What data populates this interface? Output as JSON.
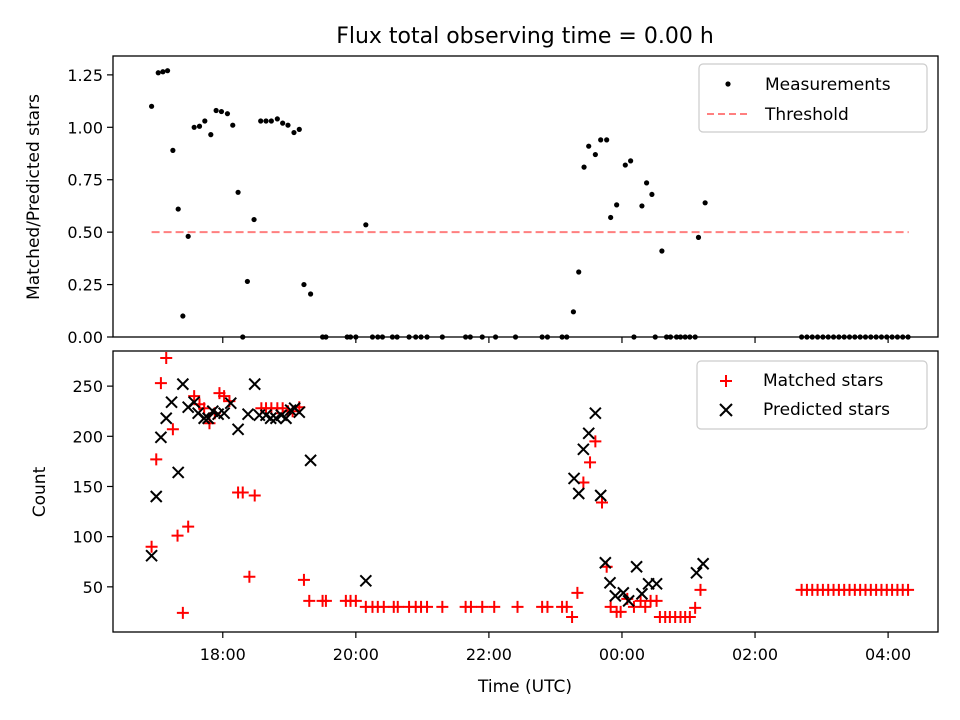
{
  "title": "Flux total observing time = 0.00 h",
  "chart_data": [
    {
      "type": "scatter",
      "panel": "top",
      "ylabel": "Matched/Predicted stars",
      "ylim": [
        0,
        1.34
      ],
      "yticks": [
        0.0,
        0.25,
        0.5,
        0.75,
        1.0,
        1.25
      ],
      "ytick_labels": [
        "0.00",
        "0.25",
        "0.50",
        "0.75",
        "1.00",
        "1.25"
      ],
      "threshold": {
        "name": "Threshold",
        "y": 0.5,
        "x_start": 16.93,
        "x_end": 28.31,
        "color": "#ff7f7f"
      },
      "legend": {
        "position": "top-right",
        "entries": [
          "Measurements",
          "Threshold"
        ]
      },
      "series": [
        {
          "name": "Measurements",
          "color": "#000000",
          "points": [
            [
              16.93,
              1.1
            ],
            [
              17.03,
              1.26
            ],
            [
              17.1,
              1.265
            ],
            [
              17.17,
              1.27
            ],
            [
              17.25,
              0.89
            ],
            [
              17.33,
              0.61
            ],
            [
              17.4,
              0.1
            ],
            [
              17.48,
              0.48
            ],
            [
              17.57,
              1.0
            ],
            [
              17.65,
              1.005
            ],
            [
              17.73,
              1.03
            ],
            [
              17.82,
              0.965
            ],
            [
              17.9,
              1.08
            ],
            [
              17.98,
              1.075
            ],
            [
              18.07,
              1.065
            ],
            [
              18.15,
              1.01
            ],
            [
              18.23,
              0.69
            ],
            [
              18.3,
              0.0
            ],
            [
              18.37,
              0.265
            ],
            [
              18.47,
              0.56
            ],
            [
              18.57,
              1.03
            ],
            [
              18.65,
              1.03
            ],
            [
              18.73,
              1.03
            ],
            [
              18.82,
              1.04
            ],
            [
              18.9,
              1.02
            ],
            [
              18.98,
              1.01
            ],
            [
              19.07,
              0.975
            ],
            [
              19.15,
              0.99
            ],
            [
              19.22,
              0.25
            ],
            [
              19.32,
              0.205
            ],
            [
              19.5,
              0.0
            ],
            [
              19.55,
              0.0
            ],
            [
              19.87,
              0.0
            ],
            [
              19.92,
              0.0
            ],
            [
              20.0,
              0.0
            ],
            [
              20.15,
              0.535
            ],
            [
              20.25,
              0.0
            ],
            [
              20.33,
              0.0
            ],
            [
              20.4,
              0.0
            ],
            [
              20.55,
              0.0
            ],
            [
              20.62,
              0.0
            ],
            [
              20.8,
              0.0
            ],
            [
              20.9,
              0.0
            ],
            [
              20.98,
              0.0
            ],
            [
              21.07,
              0.0
            ],
            [
              21.3,
              0.0
            ],
            [
              21.65,
              0.0
            ],
            [
              21.72,
              0.0
            ],
            [
              21.9,
              0.0
            ],
            [
              22.1,
              0.0
            ],
            [
              22.4,
              0.0
            ],
            [
              22.8,
              0.0
            ],
            [
              22.88,
              0.0
            ],
            [
              23.1,
              0.0
            ],
            [
              23.17,
              0.0
            ],
            [
              23.27,
              0.12
            ],
            [
              23.35,
              0.31
            ],
            [
              23.43,
              0.81
            ],
            [
              23.5,
              0.91
            ],
            [
              23.6,
              0.87
            ],
            [
              23.68,
              0.94
            ],
            [
              23.77,
              0.94
            ],
            [
              23.83,
              0.57
            ],
            [
              23.92,
              0.63
            ],
            [
              24.05,
              0.82
            ],
            [
              24.13,
              0.84
            ],
            [
              24.18,
              0.0
            ],
            [
              24.3,
              0.625
            ],
            [
              24.37,
              0.735
            ],
            [
              24.45,
              0.68
            ],
            [
              24.5,
              0.0
            ],
            [
              24.6,
              0.41
            ],
            [
              24.67,
              0.0
            ],
            [
              24.73,
              0.0
            ],
            [
              24.82,
              0.0
            ],
            [
              24.88,
              0.0
            ],
            [
              24.95,
              0.0
            ],
            [
              25.02,
              0.0
            ],
            [
              25.1,
              0.0
            ],
            [
              25.15,
              0.475
            ],
            [
              25.25,
              0.64
            ],
            [
              26.7,
              0.0
            ],
            [
              26.78,
              0.0
            ],
            [
              26.86,
              0.0
            ],
            [
              26.94,
              0.0
            ],
            [
              27.02,
              0.0
            ],
            [
              27.1,
              0.0
            ],
            [
              27.18,
              0.0
            ],
            [
              27.26,
              0.0
            ],
            [
              27.34,
              0.0
            ],
            [
              27.42,
              0.0
            ],
            [
              27.5,
              0.0
            ],
            [
              27.58,
              0.0
            ],
            [
              27.66,
              0.0
            ],
            [
              27.74,
              0.0
            ],
            [
              27.82,
              0.0
            ],
            [
              27.9,
              0.0
            ],
            [
              27.98,
              0.0
            ],
            [
              28.06,
              0.0
            ],
            [
              28.14,
              0.0
            ],
            [
              28.22,
              0.0
            ],
            [
              28.3,
              0.0
            ]
          ]
        }
      ]
    },
    {
      "type": "scatter",
      "panel": "bottom",
      "xlabel": "Time (UTC)",
      "ylabel": "Count",
      "ylim": [
        5,
        285
      ],
      "yticks": [
        50,
        100,
        150,
        200,
        250
      ],
      "ytick_labels": [
        "50",
        "100",
        "150",
        "200",
        "250"
      ],
      "xlim": [
        16.35,
        28.75
      ],
      "xticks": [
        18,
        20,
        22,
        24,
        26,
        28
      ],
      "xtick_labels": [
        "18:00",
        "20:00",
        "22:00",
        "00:00",
        "02:00",
        "04:00"
      ],
      "legend": {
        "position": "top-right",
        "entries": [
          "Matched stars",
          "Predicted stars"
        ]
      },
      "series": [
        {
          "name": "Matched stars",
          "marker": "plus",
          "color": "#ff0000",
          "points": [
            [
              16.93,
              90
            ],
            [
              17.0,
              177
            ],
            [
              17.07,
              253
            ],
            [
              17.15,
              278
            ],
            [
              17.25,
              207
            ],
            [
              17.32,
              101
            ],
            [
              17.4,
              24
            ],
            [
              17.48,
              110
            ],
            [
              17.57,
              240
            ],
            [
              17.65,
              232
            ],
            [
              17.72,
              228
            ],
            [
              17.8,
              213
            ],
            [
              17.88,
              223
            ],
            [
              17.95,
              243
            ],
            [
              18.02,
              240
            ],
            [
              18.1,
              235
            ],
            [
              18.23,
              144
            ],
            [
              18.3,
              144
            ],
            [
              18.4,
              60
            ],
            [
              18.48,
              141
            ],
            [
              18.58,
              228
            ],
            [
              18.65,
              228
            ],
            [
              18.73,
              228
            ],
            [
              18.82,
              228
            ],
            [
              18.9,
              228
            ],
            [
              18.98,
              225
            ],
            [
              19.05,
              225
            ],
            [
              19.15,
              229
            ],
            [
              19.22,
              57
            ],
            [
              19.3,
              36
            ],
            [
              19.5,
              36
            ],
            [
              19.55,
              36
            ],
            [
              19.85,
              36
            ],
            [
              19.92,
              36
            ],
            [
              20.0,
              36
            ],
            [
              20.15,
              30
            ],
            [
              20.25,
              30
            ],
            [
              20.33,
              30
            ],
            [
              20.42,
              30
            ],
            [
              20.57,
              30
            ],
            [
              20.63,
              30
            ],
            [
              20.8,
              30
            ],
            [
              20.9,
              30
            ],
            [
              20.98,
              30
            ],
            [
              21.07,
              30
            ],
            [
              21.3,
              30
            ],
            [
              21.65,
              30
            ],
            [
              21.73,
              30
            ],
            [
              21.9,
              30
            ],
            [
              22.08,
              30
            ],
            [
              22.43,
              30
            ],
            [
              22.8,
              30
            ],
            [
              22.88,
              30
            ],
            [
              23.1,
              30
            ],
            [
              23.17,
              30
            ],
            [
              23.25,
              20
            ],
            [
              23.33,
              44
            ],
            [
              23.42,
              154
            ],
            [
              23.52,
              174
            ],
            [
              23.6,
              195
            ],
            [
              23.7,
              134
            ],
            [
              23.77,
              70
            ],
            [
              23.83,
              30
            ],
            [
              23.92,
              25
            ],
            [
              23.98,
              25
            ],
            [
              24.08,
              38
            ],
            [
              24.18,
              30
            ],
            [
              24.28,
              36
            ],
            [
              24.35,
              30
            ],
            [
              24.43,
              36
            ],
            [
              24.52,
              36
            ],
            [
              24.57,
              20
            ],
            [
              24.65,
              20
            ],
            [
              24.72,
              20
            ],
            [
              24.8,
              20
            ],
            [
              24.88,
              20
            ],
            [
              24.95,
              20
            ],
            [
              25.02,
              20
            ],
            [
              25.1,
              29
            ],
            [
              25.18,
              47
            ],
            [
              26.7,
              47
            ],
            [
              26.78,
              47
            ],
            [
              26.86,
              47
            ],
            [
              26.94,
              47
            ],
            [
              27.02,
              47
            ],
            [
              27.1,
              47
            ],
            [
              27.18,
              47
            ],
            [
              27.26,
              47
            ],
            [
              27.34,
              47
            ],
            [
              27.42,
              47
            ],
            [
              27.5,
              47
            ],
            [
              27.58,
              47
            ],
            [
              27.66,
              47
            ],
            [
              27.74,
              47
            ],
            [
              27.82,
              47
            ],
            [
              27.9,
              47
            ],
            [
              27.98,
              47
            ],
            [
              28.06,
              47
            ],
            [
              28.14,
              47
            ],
            [
              28.22,
              47
            ],
            [
              28.3,
              47
            ]
          ]
        },
        {
          "name": "Predicted stars",
          "marker": "x",
          "color": "#000000",
          "points": [
            [
              16.93,
              81
            ],
            [
              17.0,
              140
            ],
            [
              17.07,
              199
            ],
            [
              17.15,
              218
            ],
            [
              17.23,
              234
            ],
            [
              17.33,
              164
            ],
            [
              17.4,
              252
            ],
            [
              17.48,
              229
            ],
            [
              17.57,
              234
            ],
            [
              17.63,
              223
            ],
            [
              17.72,
              218
            ],
            [
              17.78,
              218
            ],
            [
              17.85,
              225
            ],
            [
              17.93,
              222
            ],
            [
              18.02,
              223
            ],
            [
              18.12,
              233
            ],
            [
              18.23,
              207
            ],
            [
              18.38,
              222
            ],
            [
              18.48,
              252
            ],
            [
              18.55,
              221
            ],
            [
              18.65,
              221
            ],
            [
              18.72,
              218
            ],
            [
              18.8,
              218
            ],
            [
              18.88,
              221
            ],
            [
              18.95,
              218
            ],
            [
              19.02,
              226
            ],
            [
              19.08,
              228
            ],
            [
              19.15,
              224
            ],
            [
              19.32,
              176
            ],
            [
              20.15,
              56
            ],
            [
              23.28,
              158
            ],
            [
              23.35,
              143
            ],
            [
              23.42,
              187
            ],
            [
              23.5,
              203
            ],
            [
              23.6,
              223
            ],
            [
              23.68,
              141
            ],
            [
              23.75,
              74
            ],
            [
              23.82,
              54
            ],
            [
              23.9,
              41
            ],
            [
              24.02,
              44
            ],
            [
              24.1,
              36
            ],
            [
              24.22,
              70
            ],
            [
              24.3,
              43
            ],
            [
              24.4,
              53
            ],
            [
              24.52,
              53
            ],
            [
              25.12,
              64
            ],
            [
              25.22,
              73
            ]
          ]
        }
      ]
    }
  ]
}
